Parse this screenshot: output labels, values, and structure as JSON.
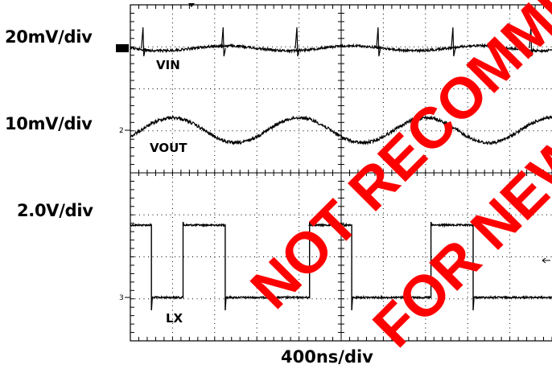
{
  "chart_data": {
    "type": "line",
    "title": "",
    "channels": [
      {
        "name": "VIN",
        "channel_number": "1",
        "scale": "20mV/div",
        "description": "ripple with spikes at switching edges"
      },
      {
        "name": "VOUT",
        "channel_number": "2",
        "scale": "10mV/div",
        "description": "sinusoidal ripple, period 1200ns, ~1 division p-p"
      },
      {
        "name": "LX",
        "channel_number": "3",
        "scale": "2.0V/div",
        "description": "square wave switching node, period 1200ns"
      }
    ],
    "x_scale": "400ns/div",
    "x_divisions": 10,
    "y_divisions": 8,
    "lx_period_ns": 1200,
    "lx_amplitude_div": 2.0,
    "vout_ripple_div": 0.6,
    "vout_ripple_mV": 6,
    "lx_high_intervals_ns": [
      [
        0,
        200
      ],
      [
        500,
        900
      ],
      [
        1700,
        2100
      ],
      [
        2850,
        3250
      ]
    ],
    "vin_spike_times_ns": [
      120,
      880,
      1580,
      2350,
      3060,
      3800
    ],
    "grid": true
  },
  "watermark": {
    "line1": "NOT RECOMMENDED",
    "line2": "FOR NEW DESIGNS"
  },
  "colors": {
    "trace": "#000000",
    "watermark": "#ff0000",
    "background": "#ffffff"
  }
}
